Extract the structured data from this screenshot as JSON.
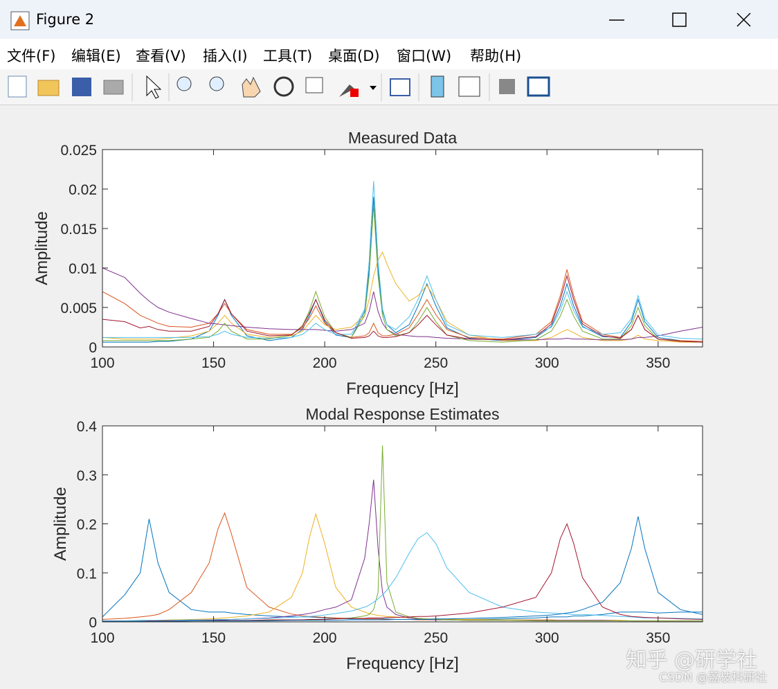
{
  "window": {
    "title": "Figure 2",
    "menu": [
      "文件(F)",
      "编辑(E)",
      "查看(V)",
      "插入(I)",
      "工具(T)",
      "桌面(D)",
      "窗口(W)",
      "帮助(H)"
    ]
  },
  "watermark": [
    "知乎 @研学社",
    "CSDN @荔枝科研社"
  ],
  "chart_data": [
    {
      "type": "line",
      "title": "Measured Data",
      "xlabel": "Frequency [Hz]",
      "ylabel": "Amplitude",
      "x": [
        100,
        110,
        117,
        121,
        125,
        130,
        140,
        148,
        152,
        155,
        158,
        165,
        175,
        185,
        190,
        193,
        196,
        200,
        205,
        212,
        218,
        220,
        222,
        224,
        226,
        228,
        232,
        238,
        242,
        246,
        250,
        255,
        265,
        280,
        295,
        302,
        306,
        309,
        312,
        316,
        325,
        333,
        338,
        341,
        344,
        350,
        360,
        370
      ],
      "xlim": [
        100,
        370
      ],
      "ylim": [
        0,
        0.025
      ],
      "xticks": [
        100,
        150,
        200,
        250,
        300,
        350
      ],
      "yticks": [
        0,
        0.005,
        0.01,
        0.015,
        0.02,
        0.025
      ],
      "series": [
        {
          "color": "#0072BD",
          "values": [
            0.0006,
            0.0006,
            0.0006,
            0.0006,
            0.0007,
            0.0007,
            0.001,
            0.002,
            0.004,
            0.006,
            0.004,
            0.0014,
            0.0008,
            0.0012,
            0.0022,
            0.0039,
            0.006,
            0.0032,
            0.0015,
            0.0012,
            0.0045,
            0.0098,
            0.019,
            0.0098,
            0.0045,
            0.0028,
            0.0018,
            0.0028,
            0.0052,
            0.008,
            0.0052,
            0.0024,
            0.0011,
            0.0008,
            0.0012,
            0.0026,
            0.0052,
            0.008,
            0.0052,
            0.0026,
            0.0013,
            0.0012,
            0.0032,
            0.006,
            0.0032,
            0.0012,
            0.0008,
            0.0006
          ]
        },
        {
          "color": "#D95319",
          "values": [
            0.007,
            0.0055,
            0.004,
            0.0035,
            0.003,
            0.0026,
            0.0025,
            0.003,
            0.0042,
            0.0055,
            0.0042,
            0.0022,
            0.0016,
            0.0016,
            0.0024,
            0.0036,
            0.0052,
            0.003,
            0.0018,
            0.0012,
            0.0014,
            0.0018,
            0.003,
            0.0018,
            0.0014,
            0.0014,
            0.0016,
            0.0024,
            0.0041,
            0.006,
            0.0041,
            0.0022,
            0.0012,
            0.001,
            0.0016,
            0.0032,
            0.0065,
            0.0098,
            0.0065,
            0.0032,
            0.0016,
            0.0012,
            0.0022,
            0.004,
            0.0022,
            0.001,
            0.0008,
            0.0007
          ]
        },
        {
          "color": "#EDB120",
          "values": [
            0.0012,
            0.001,
            0.001,
            0.001,
            0.001,
            0.0011,
            0.0014,
            0.002,
            0.003,
            0.004,
            0.003,
            0.0016,
            0.0012,
            0.0014,
            0.002,
            0.003,
            0.004,
            0.0028,
            0.0022,
            0.0025,
            0.004,
            0.006,
            0.009,
            0.011,
            0.012,
            0.0105,
            0.008,
            0.0058,
            0.0065,
            0.0078,
            0.006,
            0.0032,
            0.0015,
            0.0008,
            0.0008,
            0.0012,
            0.0018,
            0.0022,
            0.0018,
            0.0012,
            0.0008,
            0.0008,
            0.001,
            0.0015,
            0.001,
            0.0008,
            0.0006,
            0.0006
          ]
        },
        {
          "color": "#7E2F8E",
          "values": [
            0.01,
            0.0088,
            0.0068,
            0.0058,
            0.005,
            0.0044,
            0.0036,
            0.003,
            0.0029,
            0.0028,
            0.0027,
            0.0025,
            0.0023,
            0.0022,
            0.0022,
            0.0022,
            0.0022,
            0.0021,
            0.002,
            0.0022,
            0.003,
            0.0045,
            0.007,
            0.0045,
            0.003,
            0.0022,
            0.0016,
            0.0014,
            0.0013,
            0.0013,
            0.0012,
            0.0011,
            0.001,
            0.0009,
            0.0009,
            0.001,
            0.001,
            0.0011,
            0.001,
            0.001,
            0.0009,
            0.0009,
            0.001,
            0.0012,
            0.0012,
            0.0014,
            0.002,
            0.0025
          ]
        },
        {
          "color": "#77AC30",
          "values": [
            0.0008,
            0.0008,
            0.0008,
            0.0008,
            0.0008,
            0.0008,
            0.001,
            0.0012,
            0.002,
            0.003,
            0.002,
            0.001,
            0.001,
            0.0015,
            0.0027,
            0.0045,
            0.007,
            0.0038,
            0.0018,
            0.0012,
            0.004,
            0.009,
            0.018,
            0.009,
            0.004,
            0.0022,
            0.0014,
            0.0018,
            0.0032,
            0.005,
            0.0032,
            0.0015,
            0.0008,
            0.0006,
            0.0009,
            0.002,
            0.0039,
            0.006,
            0.0039,
            0.002,
            0.001,
            0.001,
            0.0027,
            0.005,
            0.0027,
            0.001,
            0.0007,
            0.0006
          ]
        },
        {
          "color": "#4DBEEE",
          "values": [
            0.0012,
            0.0012,
            0.0012,
            0.0012,
            0.0012,
            0.0012,
            0.0012,
            0.0013,
            0.0016,
            0.002,
            0.0016,
            0.0012,
            0.0011,
            0.0012,
            0.0016,
            0.0022,
            0.003,
            0.0022,
            0.0016,
            0.0016,
            0.0048,
            0.0108,
            0.021,
            0.0108,
            0.0048,
            0.0028,
            0.0022,
            0.0038,
            0.006,
            0.009,
            0.006,
            0.0028,
            0.0015,
            0.0012,
            0.0016,
            0.0025,
            0.0046,
            0.007,
            0.0046,
            0.0025,
            0.0016,
            0.0018,
            0.0036,
            0.0065,
            0.0036,
            0.0015,
            0.0011,
            0.001
          ]
        },
        {
          "color": "#A2142F",
          "values": [
            0.0035,
            0.0032,
            0.0024,
            0.0026,
            0.0022,
            0.002,
            0.002,
            0.0026,
            0.0042,
            0.006,
            0.0042,
            0.002,
            0.0014,
            0.0015,
            0.0026,
            0.0042,
            0.006,
            0.0034,
            0.0018,
            0.0011,
            0.0012,
            0.0014,
            0.002,
            0.0014,
            0.0012,
            0.0012,
            0.0013,
            0.0018,
            0.0028,
            0.004,
            0.0028,
            0.0015,
            0.001,
            0.0009,
            0.0013,
            0.0029,
            0.006,
            0.009,
            0.006,
            0.0029,
            0.0014,
            0.0011,
            0.0022,
            0.004,
            0.0022,
            0.001,
            0.0007,
            0.0006
          ]
        }
      ]
    },
    {
      "type": "line",
      "title": "Modal Response Estimates",
      "xlabel": "Frequency [Hz]",
      "ylabel": "Amplitude",
      "x": [
        100,
        110,
        117,
        121,
        125,
        130,
        140,
        148,
        152,
        155,
        158,
        165,
        175,
        185,
        190,
        193,
        196,
        200,
        205,
        212,
        218,
        220,
        222,
        224,
        226,
        228,
        232,
        238,
        242,
        246,
        250,
        255,
        265,
        280,
        295,
        302,
        306,
        309,
        312,
        316,
        325,
        333,
        338,
        341,
        344,
        350,
        360,
        370
      ],
      "xlim": [
        100,
        370
      ],
      "ylim": [
        0,
        0.4
      ],
      "xticks": [
        100,
        150,
        200,
        250,
        300,
        350
      ],
      "yticks": [
        0,
        0.1,
        0.2,
        0.3,
        0.4
      ],
      "series": [
        {
          "color": "#0072BD",
          "values": [
            0.01,
            0.055,
            0.1,
            0.21,
            0.12,
            0.06,
            0.025,
            0.02,
            0.02,
            0.02,
            0.018,
            0.015,
            0.012,
            0.01,
            0.01,
            0.01,
            0.009,
            0.008,
            0.007,
            0.006,
            0.006,
            0.006,
            0.006,
            0.006,
            0.006,
            0.006,
            0.005,
            0.005,
            0.005,
            0.005,
            0.005,
            0.005,
            0.005,
            0.006,
            0.008,
            0.01,
            0.01,
            0.01,
            0.012,
            0.012,
            0.015,
            0.02,
            0.02,
            0.02,
            0.02,
            0.018,
            0.02,
            0.02
          ]
        },
        {
          "color": "#D95319",
          "values": [
            0.005,
            0.007,
            0.01,
            0.012,
            0.015,
            0.025,
            0.06,
            0.12,
            0.19,
            0.222,
            0.18,
            0.07,
            0.03,
            0.016,
            0.012,
            0.011,
            0.01,
            0.009,
            0.008,
            0.007,
            0.006,
            0.006,
            0.006,
            0.006,
            0.005,
            0.005,
            0.005,
            0.005,
            0.004,
            0.004,
            0.004,
            0.004,
            0.004,
            0.003,
            0.003,
            0.003,
            0.003,
            0.003,
            0.003,
            0.003,
            0.003,
            0.003,
            0.002,
            0.002,
            0.002,
            0.002,
            0.002,
            0.002
          ]
        },
        {
          "color": "#EDB120",
          "values": [
            0.002,
            0.002,
            0.003,
            0.003,
            0.003,
            0.004,
            0.005,
            0.006,
            0.007,
            0.008,
            0.009,
            0.012,
            0.02,
            0.05,
            0.1,
            0.17,
            0.22,
            0.16,
            0.07,
            0.03,
            0.02,
            0.017,
            0.015,
            0.013,
            0.012,
            0.011,
            0.01,
            0.008,
            0.007,
            0.006,
            0.006,
            0.005,
            0.005,
            0.004,
            0.004,
            0.004,
            0.003,
            0.003,
            0.003,
            0.003,
            0.003,
            0.003,
            0.002,
            0.002,
            0.002,
            0.002,
            0.002,
            0.002
          ]
        },
        {
          "color": "#7E2F8E",
          "values": [
            0.002,
            0.002,
            0.002,
            0.002,
            0.003,
            0.003,
            0.003,
            0.004,
            0.004,
            0.004,
            0.005,
            0.006,
            0.008,
            0.012,
            0.015,
            0.017,
            0.02,
            0.025,
            0.03,
            0.045,
            0.13,
            0.2,
            0.29,
            0.15,
            0.06,
            0.03,
            0.015,
            0.008,
            0.006,
            0.005,
            0.004,
            0.004,
            0.003,
            0.003,
            0.003,
            0.003,
            0.003,
            0.003,
            0.003,
            0.003,
            0.003,
            0.002,
            0.002,
            0.002,
            0.002,
            0.002,
            0.002,
            0.002
          ]
        },
        {
          "color": "#77AC30",
          "values": [
            0.001,
            0.001,
            0.001,
            0.001,
            0.001,
            0.001,
            0.002,
            0.002,
            0.002,
            0.002,
            0.002,
            0.002,
            0.003,
            0.003,
            0.004,
            0.004,
            0.004,
            0.005,
            0.006,
            0.008,
            0.012,
            0.015,
            0.025,
            0.06,
            0.36,
            0.08,
            0.02,
            0.01,
            0.007,
            0.006,
            0.005,
            0.004,
            0.003,
            0.003,
            0.002,
            0.002,
            0.002,
            0.002,
            0.002,
            0.002,
            0.002,
            0.002,
            0.002,
            0.002,
            0.002,
            0.002,
            0.002,
            0.002
          ]
        },
        {
          "color": "#4DBEEE",
          "values": [
            0.002,
            0.002,
            0.003,
            0.003,
            0.003,
            0.003,
            0.004,
            0.004,
            0.005,
            0.005,
            0.005,
            0.006,
            0.007,
            0.009,
            0.01,
            0.011,
            0.012,
            0.014,
            0.017,
            0.022,
            0.03,
            0.034,
            0.04,
            0.047,
            0.055,
            0.065,
            0.09,
            0.14,
            0.17,
            0.182,
            0.16,
            0.11,
            0.06,
            0.03,
            0.02,
            0.018,
            0.017,
            0.016,
            0.015,
            0.015,
            0.013,
            0.011,
            0.01,
            0.009,
            0.008,
            0.008,
            0.007,
            0.006
          ]
        },
        {
          "color": "#A2142F",
          "values": [
            0.001,
            0.001,
            0.001,
            0.002,
            0.002,
            0.002,
            0.002,
            0.003,
            0.003,
            0.003,
            0.003,
            0.003,
            0.004,
            0.004,
            0.004,
            0.005,
            0.005,
            0.005,
            0.006,
            0.007,
            0.007,
            0.008,
            0.008,
            0.008,
            0.008,
            0.009,
            0.009,
            0.01,
            0.011,
            0.011,
            0.012,
            0.014,
            0.018,
            0.03,
            0.05,
            0.1,
            0.17,
            0.2,
            0.16,
            0.09,
            0.03,
            0.015,
            0.011,
            0.01,
            0.009,
            0.008,
            0.006,
            0.005
          ]
        },
        {
          "color": "#0072BD",
          "values": [
            0.001,
            0.001,
            0.001,
            0.001,
            0.001,
            0.001,
            0.002,
            0.002,
            0.002,
            0.002,
            0.002,
            0.002,
            0.002,
            0.003,
            0.003,
            0.003,
            0.003,
            0.003,
            0.003,
            0.004,
            0.004,
            0.004,
            0.004,
            0.004,
            0.004,
            0.004,
            0.005,
            0.005,
            0.005,
            0.005,
            0.006,
            0.006,
            0.007,
            0.009,
            0.012,
            0.014,
            0.016,
            0.018,
            0.02,
            0.025,
            0.04,
            0.08,
            0.15,
            0.215,
            0.15,
            0.06,
            0.025,
            0.015
          ]
        }
      ]
    }
  ]
}
